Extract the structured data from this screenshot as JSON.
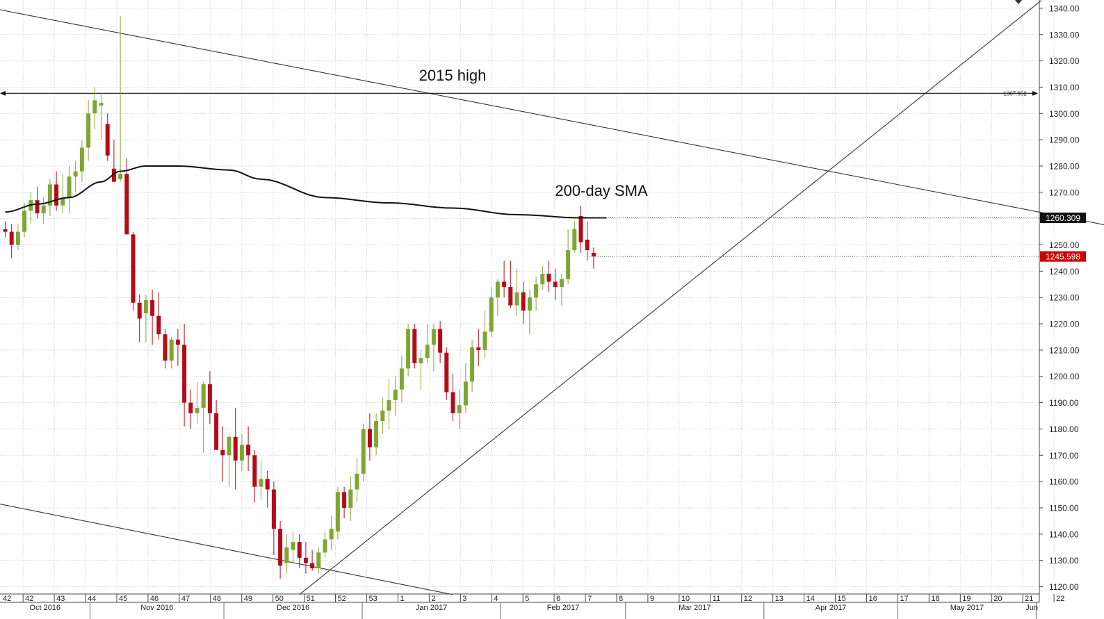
{
  "chart_data": {
    "type": "candlestick",
    "instrument_note": "",
    "y_axis": {
      "ylim": [
        1117,
        1343
      ],
      "ticks": [
        "1120.00",
        "1130.00",
        "1140.00",
        "1150.00",
        "1160.00",
        "1170.00",
        "1180.00",
        "1190.00",
        "1200.00",
        "1210.00",
        "1220.00",
        "1230.00",
        "1240.00",
        "1250.00",
        "1260.00",
        "1270.00",
        "1280.00",
        "1290.00",
        "1300.00",
        "1310.00",
        "1320.00",
        "1330.00",
        "1340.00"
      ]
    },
    "x_axis": {
      "week_labels": [
        "42",
        "43",
        "44",
        "45",
        "46",
        "47",
        "48",
        "49",
        "50",
        "51",
        "52",
        "53",
        "1",
        "2",
        "3",
        "4",
        "5",
        "6",
        "7",
        "8",
        "9",
        "10",
        "11",
        "12",
        "13",
        "14",
        "15",
        "16",
        "17",
        "18",
        "19",
        "20",
        "21",
        "22"
      ],
      "month_labels": [
        "Oct 2016",
        "Nov 2016",
        "Dec 2016",
        "Jan 2017",
        "Feb 2017",
        "Mar 2017",
        "Apr 2017",
        "May 2017",
        "Jun"
      ],
      "start_date": "2016-10-13",
      "end_date": "2017-05-31",
      "last_candle_date": "2017-02-27"
    },
    "candles": [
      [
        1256,
        1259,
        1253,
        1255
      ],
      [
        1255,
        1258,
        1245,
        1250
      ],
      [
        1250,
        1258,
        1248,
        1255
      ],
      [
        1255,
        1266,
        1253,
        1263
      ],
      [
        1263,
        1270,
        1258,
        1267
      ],
      [
        1267,
        1272,
        1260,
        1262
      ],
      [
        1262,
        1268,
        1258,
        1265
      ],
      [
        1265,
        1275,
        1261,
        1273
      ],
      [
        1273,
        1278,
        1263,
        1265
      ],
      [
        1265,
        1277,
        1262,
        1268
      ],
      [
        1268,
        1280,
        1262,
        1276
      ],
      [
        1276,
        1282,
        1270,
        1278
      ],
      [
        1278,
        1290,
        1274,
        1287
      ],
      [
        1287,
        1305,
        1282,
        1300
      ],
      [
        1300,
        1310,
        1294,
        1305
      ],
      [
        1303,
        1307,
        1290,
        1304
      ],
      [
        1296,
        1300,
        1282,
        1284
      ],
      [
        1279,
        1290,
        1274,
        1274
      ],
      [
        1275,
        1337,
        1274,
        1277
      ],
      [
        1277,
        1283,
        1254,
        1254
      ],
      [
        1254,
        1255,
        1225,
        1228
      ],
      [
        1228,
        1231,
        1213,
        1222
      ],
      [
        1224,
        1231,
        1213,
        1229
      ],
      [
        1229,
        1233,
        1212,
        1223
      ],
      [
        1223,
        1232,
        1214,
        1216
      ],
      [
        1216,
        1218,
        1203,
        1206
      ],
      [
        1206,
        1215,
        1203,
        1214
      ],
      [
        1214,
        1218,
        1204,
        1212
      ],
      [
        1212,
        1220,
        1181,
        1190
      ],
      [
        1190,
        1195,
        1180,
        1186
      ],
      [
        1186,
        1198,
        1182,
        1188
      ],
      [
        1188,
        1198,
        1171,
        1197
      ],
      [
        1197,
        1202,
        1182,
        1186
      ],
      [
        1186,
        1191,
        1172,
        1172
      ],
      [
        1172,
        1181,
        1160,
        1170
      ],
      [
        1170,
        1178,
        1158,
        1177
      ],
      [
        1177,
        1188,
        1157,
        1168
      ],
      [
        1168,
        1178,
        1164,
        1174
      ],
      [
        1174,
        1181,
        1164,
        1170
      ],
      [
        1170,
        1172,
        1152,
        1158
      ],
      [
        1158,
        1168,
        1153,
        1161
      ],
      [
        1161,
        1164,
        1150,
        1157
      ],
      [
        1157,
        1160,
        1132,
        1142
      ],
      [
        1142,
        1145,
        1123,
        1128
      ],
      [
        1129,
        1140,
        1125,
        1135
      ],
      [
        1134,
        1141,
        1129,
        1137
      ],
      [
        1137,
        1140,
        1127,
        1131
      ],
      [
        1131,
        1137,
        1125,
        1129
      ],
      [
        1129,
        1134,
        1126,
        1127
      ],
      [
        1127,
        1135,
        1125,
        1133
      ],
      [
        1133,
        1141,
        1131,
        1138
      ],
      [
        1138,
        1147,
        1134,
        1142
      ],
      [
        1141,
        1158,
        1138,
        1156
      ],
      [
        1156,
        1158,
        1146,
        1150
      ],
      [
        1150,
        1162,
        1145,
        1157
      ],
      [
        1157,
        1169,
        1152,
        1163
      ],
      [
        1163,
        1182,
        1160,
        1180
      ],
      [
        1180,
        1186,
        1168,
        1173
      ],
      [
        1173,
        1186,
        1170,
        1183
      ],
      [
        1183,
        1192,
        1178,
        1187
      ],
      [
        1187,
        1199,
        1180,
        1191
      ],
      [
        1191,
        1200,
        1185,
        1195
      ],
      [
        1195,
        1208,
        1190,
        1203
      ],
      [
        1203,
        1220,
        1200,
        1218
      ],
      [
        1218,
        1220,
        1203,
        1205
      ],
      [
        1205,
        1210,
        1195,
        1207
      ],
      [
        1207,
        1220,
        1205,
        1212
      ],
      [
        1212,
        1220,
        1202,
        1218
      ],
      [
        1218,
        1221,
        1205,
        1209
      ],
      [
        1209,
        1211,
        1191,
        1194
      ],
      [
        1194,
        1201,
        1183,
        1186
      ],
      [
        1186,
        1195,
        1180,
        1189
      ],
      [
        1189,
        1205,
        1186,
        1198
      ],
      [
        1198,
        1214,
        1194,
        1211
      ],
      [
        1211,
        1218,
        1204,
        1210
      ],
      [
        1210,
        1225,
        1207,
        1217
      ],
      [
        1217,
        1234,
        1215,
        1230
      ],
      [
        1230,
        1237,
        1223,
        1236
      ],
      [
        1236,
        1244,
        1230,
        1234
      ],
      [
        1234,
        1244,
        1226,
        1227
      ],
      [
        1227,
        1241,
        1223,
        1232
      ],
      [
        1232,
        1236,
        1220,
        1225
      ],
      [
        1225,
        1233,
        1216,
        1230
      ],
      [
        1230,
        1238,
        1225,
        1235
      ],
      [
        1235,
        1242,
        1233,
        1239
      ],
      [
        1239,
        1244,
        1232,
        1236
      ],
      [
        1236,
        1241,
        1229,
        1234
      ],
      [
        1234,
        1239,
        1227,
        1237
      ],
      [
        1237,
        1256,
        1235,
        1248
      ],
      [
        1248,
        1259,
        1247,
        1256
      ],
      [
        1261,
        1265,
        1247,
        1251
      ],
      [
        1252,
        1259,
        1244,
        1248
      ],
      [
        1247,
        1249,
        1241,
        1245.6
      ]
    ],
    "series": [
      {
        "name": "200-day SMA",
        "x": [
          0,
          5,
          10,
          15,
          18,
          22,
          27,
          35,
          40,
          50,
          60,
          70,
          80,
          90,
          94
        ],
        "values": [
          1262.5,
          1265.5,
          1268,
          1274,
          1278,
          1280,
          1280,
          1278.5,
          1275,
          1268,
          1266,
          1264,
          1261.5,
          1260.3,
          1260.3
        ]
      }
    ],
    "trendlines": [
      {
        "x": [
          -2,
          188
        ],
        "y": [
          1340,
          1250
        ]
      },
      {
        "x": [
          -2,
          70
        ],
        "y": [
          1152,
          1117
        ]
      },
      {
        "x": [
          46,
          162
        ],
        "y": [
          1117,
          1343
        ]
      }
    ],
    "horizontal_level": {
      "value": 1307.652,
      "label": "1307.652"
    },
    "price_tags": [
      {
        "label": "1260.309",
        "value": 1260.309,
        "background": "#111111",
        "text_color": "#ffffff"
      },
      {
        "label": "1245.598",
        "value": 1245.598,
        "background": "#cc0000",
        "text_color": "#ffffff"
      }
    ],
    "annotations": [
      {
        "text": "2015 high"
      },
      {
        "text": "200-day SMA"
      }
    ],
    "colors": {
      "up": "#7fa632",
      "down": "#b40b18",
      "sma": "#111111",
      "grid": "#cfcfcf",
      "trend": "#333333"
    },
    "grid": true
  }
}
